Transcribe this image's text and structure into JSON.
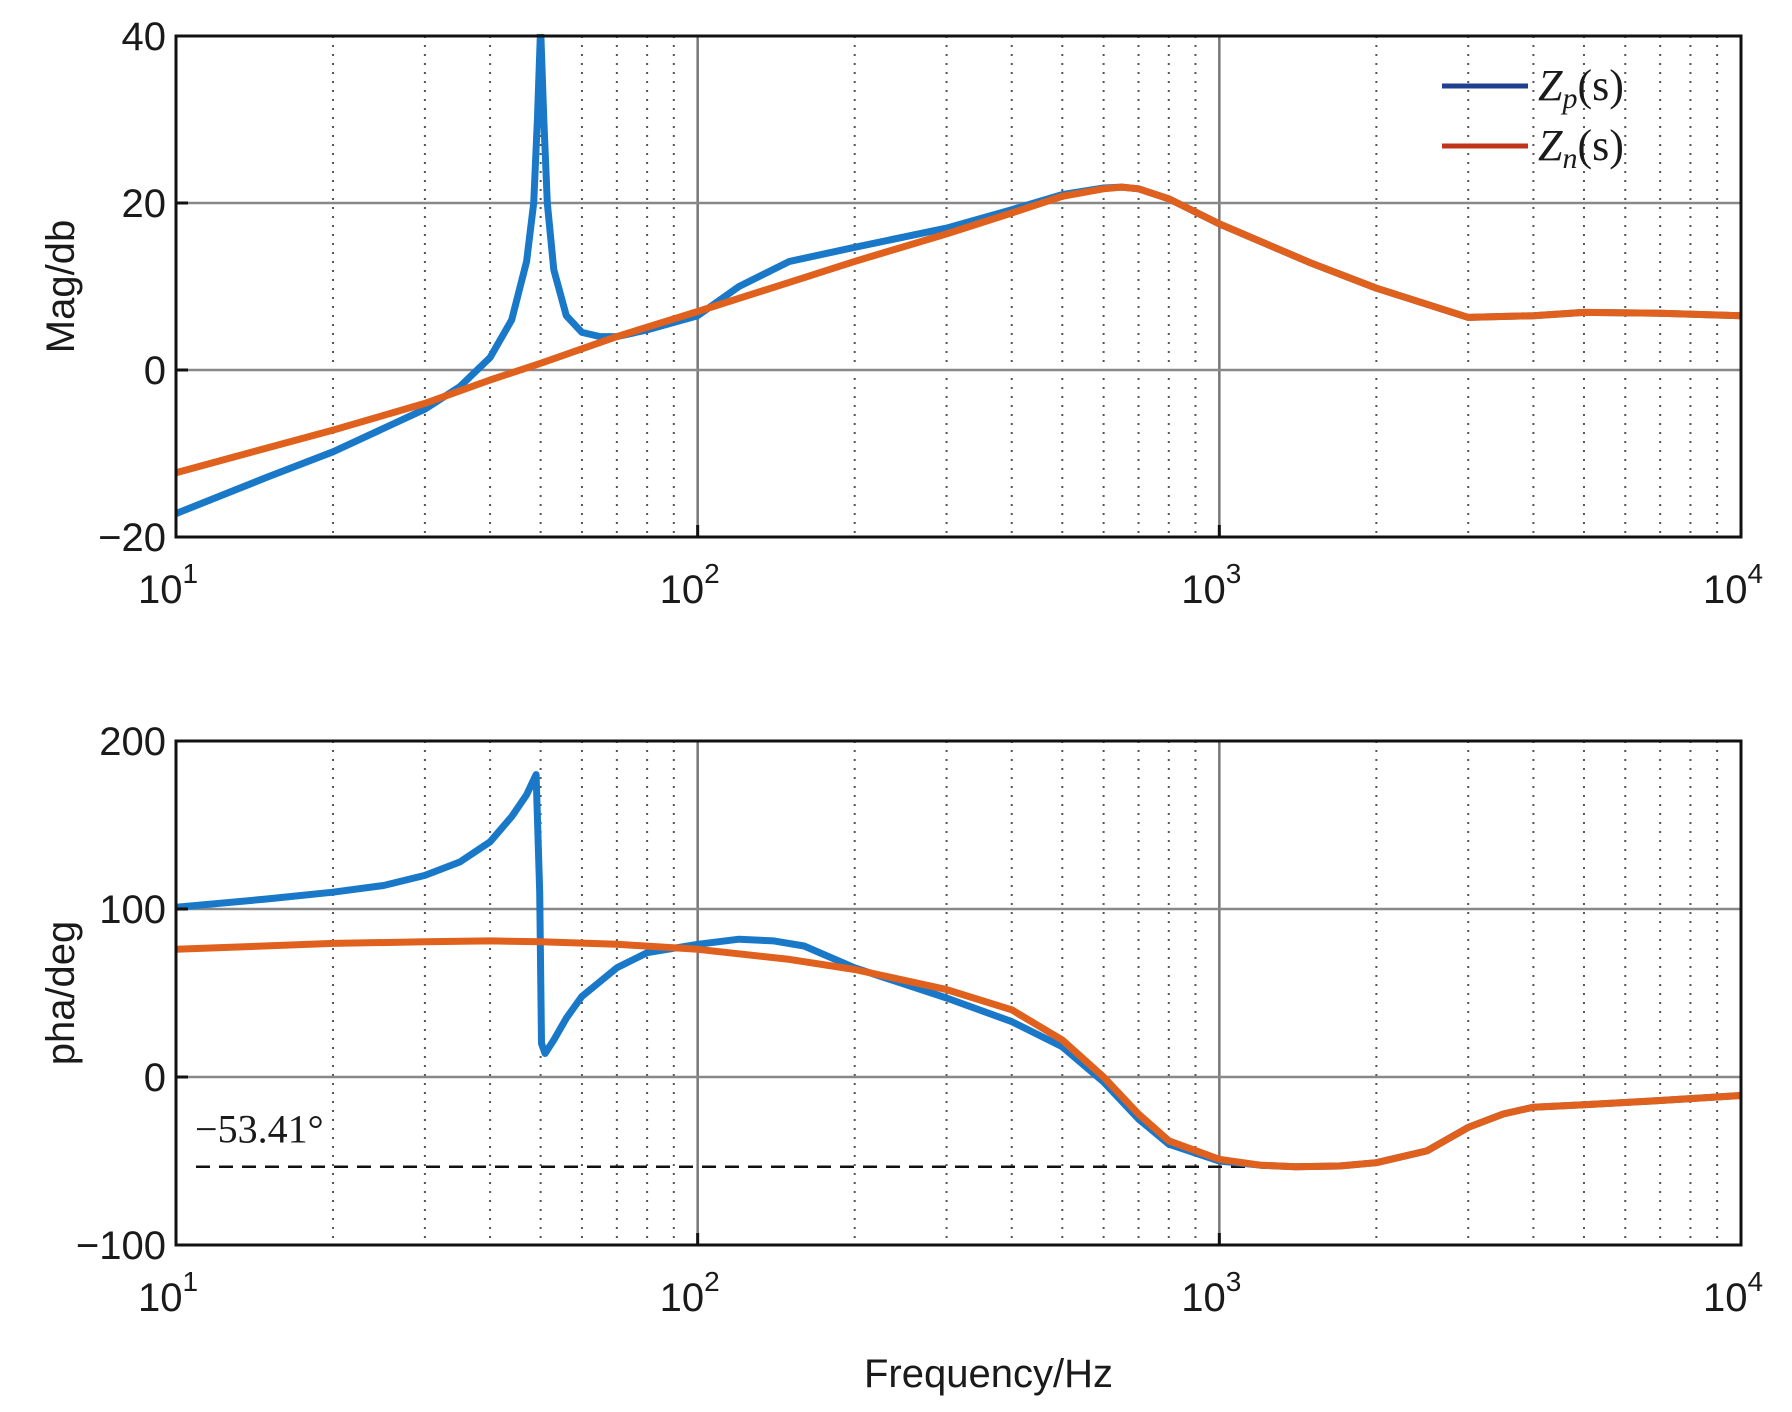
{
  "chart_data": [
    {
      "type": "line",
      "title": "",
      "xlabel": "",
      "ylabel": "Mag/db",
      "xscale": "log",
      "xlim": [
        10,
        10000
      ],
      "ylim": [
        -20,
        40
      ],
      "yticks": [
        {
          "value": -20,
          "label": "−20"
        },
        {
          "value": 0,
          "label": "0"
        },
        {
          "value": 20,
          "label": "20"
        },
        {
          "value": 40,
          "label": "40"
        }
      ],
      "xticks": [
        {
          "value": 10,
          "base": "10",
          "exp": "1"
        },
        {
          "value": 100,
          "base": "10",
          "exp": "2"
        },
        {
          "value": 1000,
          "base": "10",
          "exp": "3"
        },
        {
          "value": 10000,
          "base": "10",
          "exp": "4"
        }
      ],
      "grid": true,
      "legend": {
        "placement": "top-right",
        "entries": [
          {
            "sym": "Z",
            "sub": "p",
            "rest": "(s)",
            "color": "#1f3f8f"
          },
          {
            "sym": "Z",
            "sub": "n",
            "rest": "(s)",
            "color": "#c0341a"
          }
        ]
      },
      "series": [
        {
          "color": "#1a78c8",
          "x": [
            10,
            15,
            20,
            30,
            35,
            40,
            44,
            47,
            48.5,
            49.3,
            50,
            50.7,
            51.5,
            53,
            56,
            60,
            65,
            70,
            80,
            100,
            120,
            150,
            200,
            300,
            400,
            500,
            600,
            650,
            700,
            800,
            1000,
            1500,
            2000,
            3000,
            4000,
            5000,
            7000,
            10000
          ],
          "y": [
            -17.2,
            -12.8,
            -9.8,
            -4.7,
            -2.0,
            1.5,
            6.0,
            13.0,
            20.0,
            30.0,
            41.0,
            30.0,
            20.0,
            12.0,
            6.5,
            4.5,
            4.0,
            4.0,
            4.8,
            6.5,
            10.0,
            13.0,
            14.7,
            17.0,
            19.2,
            21.0,
            21.8,
            21.9,
            21.7,
            20.5,
            17.5,
            12.8,
            9.8,
            6.3,
            6.5,
            6.9,
            6.8,
            6.5
          ]
        },
        {
          "color": "#e0601e",
          "x": [
            10,
            20,
            30,
            40,
            50,
            70,
            100,
            150,
            200,
            300,
            400,
            500,
            600,
            650,
            700,
            800,
            1000,
            1500,
            2000,
            3000,
            4000,
            5000,
            7000,
            10000
          ],
          "y": [
            -12.3,
            -7.2,
            -4.0,
            -1.2,
            0.8,
            4.0,
            7.0,
            10.5,
            13.0,
            16.3,
            18.8,
            20.8,
            21.7,
            21.9,
            21.7,
            20.5,
            17.5,
            12.8,
            9.8,
            6.3,
            6.5,
            6.9,
            6.8,
            6.5
          ]
        }
      ]
    },
    {
      "type": "line",
      "title": "",
      "xlabel": "Frequency/Hz",
      "ylabel": "pha/deg",
      "xscale": "log",
      "xlim": [
        10,
        10000
      ],
      "ylim": [
        -100,
        200
      ],
      "yticks": [
        {
          "value": -100,
          "label": "−100"
        },
        {
          "value": 0,
          "label": "0"
        },
        {
          "value": 100,
          "label": "100"
        },
        {
          "value": 200,
          "label": "200"
        }
      ],
      "xticks": [
        {
          "value": 10,
          "base": "10",
          "exp": "1"
        },
        {
          "value": 100,
          "base": "10",
          "exp": "2"
        },
        {
          "value": 1000,
          "base": "10",
          "exp": "3"
        },
        {
          "value": 10000,
          "base": "10",
          "exp": "4"
        }
      ],
      "grid": true,
      "annotation": {
        "label": "−53.41°",
        "y": -53.41,
        "x_label": 10.5
      },
      "series": [
        {
          "color": "#1a78c8",
          "x": [
            10,
            15,
            20,
            25,
            30,
            35,
            40,
            44,
            47,
            49,
            49.8,
            50.2,
            51,
            53,
            56,
            60,
            70,
            80,
            100,
            120,
            140,
            160,
            200,
            300,
            400,
            500,
            600,
            700,
            800,
            1000,
            1200,
            1400,
            1700,
            2000,
            2500,
            3000,
            3500,
            4000,
            5000,
            7000,
            10000
          ],
          "y": [
            101,
            106,
            110,
            114,
            120,
            128,
            140,
            155,
            168,
            180,
            110,
            20,
            14,
            22,
            35,
            48,
            65,
            74,
            79,
            82,
            81,
            78,
            65,
            47,
            33,
            18,
            -3,
            -25,
            -40,
            -50,
            -52.5,
            -53.4,
            -53,
            -51,
            -44,
            -30,
            -22,
            -18,
            -16.5,
            -14,
            -11
          ]
        },
        {
          "color": "#e0601e",
          "x": [
            10,
            20,
            30,
            40,
            50,
            70,
            100,
            150,
            200,
            300,
            400,
            500,
            600,
            700,
            800,
            1000,
            1200,
            1400,
            1700,
            2000,
            2500,
            3000,
            3500,
            4000,
            5000,
            7000,
            10000
          ],
          "y": [
            76,
            79.5,
            80.5,
            81,
            80.5,
            79,
            76,
            70,
            64,
            52,
            40,
            22,
            0,
            -22,
            -38,
            -49,
            -52.5,
            -53.4,
            -53,
            -51,
            -44,
            -30,
            -22,
            -18,
            -16.5,
            -14,
            -11
          ]
        }
      ]
    }
  ]
}
